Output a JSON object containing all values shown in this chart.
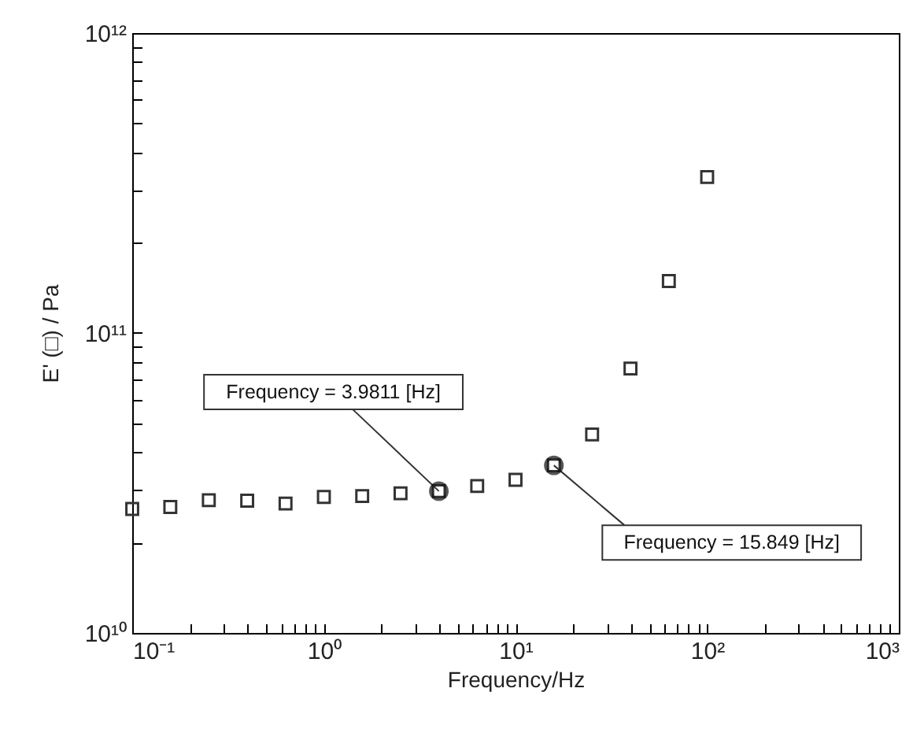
{
  "chart_data": {
    "type": "scatter",
    "xlabel": "Frequency/Hz",
    "ylabel": "E' (□) / Pa",
    "log": "xy",
    "marker": "square",
    "grid": false,
    "x": [
      0.1,
      0.158,
      0.251,
      0.398,
      0.631,
      1,
      1.585,
      2.512,
      3.981,
      6.31,
      10,
      15.85,
      25.1,
      39.8,
      63.1,
      100
    ],
    "series": [
      {
        "color": "#333333",
        "values": [
          25900000000.0,
          26300000000.0,
          27700000000.0,
          27600000000.0,
          27000000000.0,
          28400000000.0,
          28600000000.0,
          29200000000.0,
          29700000000.0,
          30900000000.0,
          32400000000.0,
          36200000000.0,
          45900000000.0,
          76100000000.0,
          149000000000.0,
          331000000000.0
        ]
      }
    ],
    "xlim": [
      0.1,
      1000
    ],
    "ylim": [
      10000000000.0,
      1000000000000.0
    ],
    "xticks": [
      {
        "value": 0.1,
        "label": "10⁻¹"
      },
      {
        "value": 0.2,
        "label": null
      },
      {
        "value": 0.3,
        "label": null
      },
      {
        "value": 0.4,
        "label": null
      },
      {
        "value": 0.5,
        "label": null
      },
      {
        "value": 0.6,
        "label": null
      },
      {
        "value": 0.7,
        "label": null
      },
      {
        "value": 0.8,
        "label": null
      },
      {
        "value": 0.9,
        "label": null
      },
      {
        "value": 1,
        "label": "10⁰"
      },
      {
        "value": 2,
        "label": null
      },
      {
        "value": 3,
        "label": null
      },
      {
        "value": 4,
        "label": null
      },
      {
        "value": 5,
        "label": null
      },
      {
        "value": 6,
        "label": null
      },
      {
        "value": 7,
        "label": null
      },
      {
        "value": 8,
        "label": null
      },
      {
        "value": 9,
        "label": null
      },
      {
        "value": 10,
        "label": "10¹"
      },
      {
        "value": 20,
        "label": null
      },
      {
        "value": 30,
        "label": null
      },
      {
        "value": 40,
        "label": null
      },
      {
        "value": 50,
        "label": null
      },
      {
        "value": 60,
        "label": null
      },
      {
        "value": 70,
        "label": null
      },
      {
        "value": 80,
        "label": null
      },
      {
        "value": 90,
        "label": null
      },
      {
        "value": 100,
        "label": "10²"
      },
      {
        "value": 200,
        "label": null
      },
      {
        "value": 300,
        "label": null
      },
      {
        "value": 400,
        "label": null
      },
      {
        "value": 500,
        "label": null
      },
      {
        "value": 600,
        "label": null
      },
      {
        "value": 700,
        "label": null
      },
      {
        "value": 800,
        "label": null
      },
      {
        "value": 900,
        "label": null
      },
      {
        "value": 1000,
        "label": "10³"
      }
    ],
    "yticks": [
      {
        "value": 10000000000.0,
        "label": "10¹⁰"
      },
      {
        "value": 20000000000.0,
        "label": null
      },
      {
        "value": 30000000000.0,
        "label": null
      },
      {
        "value": 40000000000.0,
        "label": null
      },
      {
        "value": 50000000000.0,
        "label": null
      },
      {
        "value": 60000000000.0,
        "label": null
      },
      {
        "value": 70000000000.0,
        "label": null
      },
      {
        "value": 80000000000.0,
        "label": null
      },
      {
        "value": 90000000000.0,
        "label": null
      },
      {
        "value": 100000000000.0,
        "label": "10¹¹"
      },
      {
        "value": 200000000000.0,
        "label": null
      },
      {
        "value": 300000000000.0,
        "label": null
      },
      {
        "value": 400000000000.0,
        "label": null
      },
      {
        "value": 500000000000.0,
        "label": null
      },
      {
        "value": 600000000000.0,
        "label": null
      },
      {
        "value": 700000000000.0,
        "label": null
      },
      {
        "value": 800000000000.0,
        "label": null
      },
      {
        "value": 900000000000.0,
        "label": null
      },
      {
        "value": 1000000000000.0,
        "label": "10¹²"
      }
    ],
    "annotations": [
      {
        "text": "Frequency = 3.9811 [Hz]",
        "x": 3.981,
        "y": 29700000000.0
      },
      {
        "text": "Frequency = 15.849 [Hz]",
        "x": 15.85,
        "y": 36200000000.0
      }
    ]
  }
}
